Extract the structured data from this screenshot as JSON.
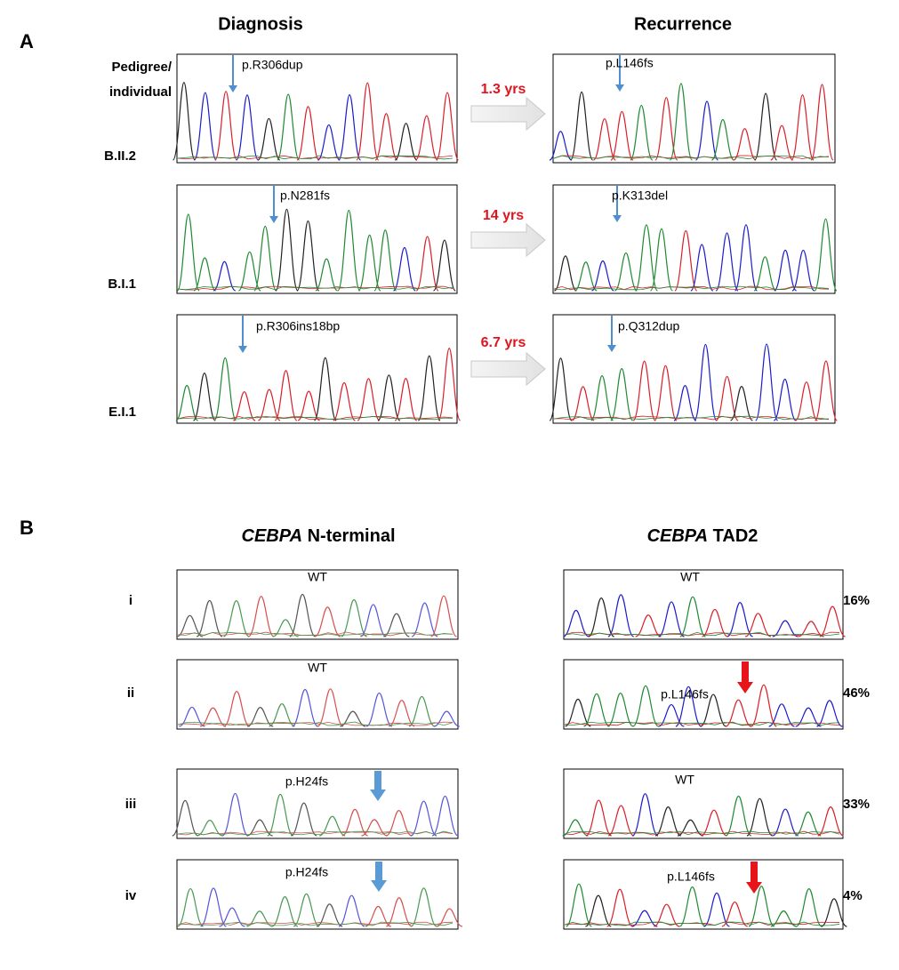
{
  "panel_a": {
    "label": "A",
    "headers": {
      "diagnosis": "Diagnosis",
      "recurrence": "Recurrence"
    },
    "row_header": [
      "Pedigree/",
      "individual"
    ],
    "rows": [
      {
        "individual": "B.II.2",
        "diagnosis": "p.R306dup",
        "interval": "1.3 yrs",
        "recurrence": "p.L146fs"
      },
      {
        "individual": "B.I.1",
        "diagnosis": "p.N281fs",
        "interval": "14 yrs",
        "recurrence": "p.K313del"
      },
      {
        "individual": "E.I.1",
        "diagnosis": "p.R306ins18bp",
        "interval": "6.7 yrs",
        "recurrence": "p.Q312dup"
      }
    ]
  },
  "panel_b": {
    "label": "B",
    "headers": [
      {
        "gene": "CEBPA",
        "region": "N-terminal"
      },
      {
        "gene": "CEBPA",
        "region": "TAD2"
      }
    ],
    "rows": [
      {
        "sample": "i",
        "n_terminal": "WT",
        "tad2": "WT",
        "fraction": "16%"
      },
      {
        "sample": "ii",
        "n_terminal": "WT",
        "tad2": "p.L146fs",
        "fraction": "46%"
      },
      {
        "sample": "iii",
        "n_terminal": "p.H24fs",
        "tad2": "WT",
        "fraction": "33%"
      },
      {
        "sample": "iv",
        "n_terminal": "p.H24fs",
        "tad2": "p.L146fs",
        "fraction": "4%"
      }
    ]
  }
}
